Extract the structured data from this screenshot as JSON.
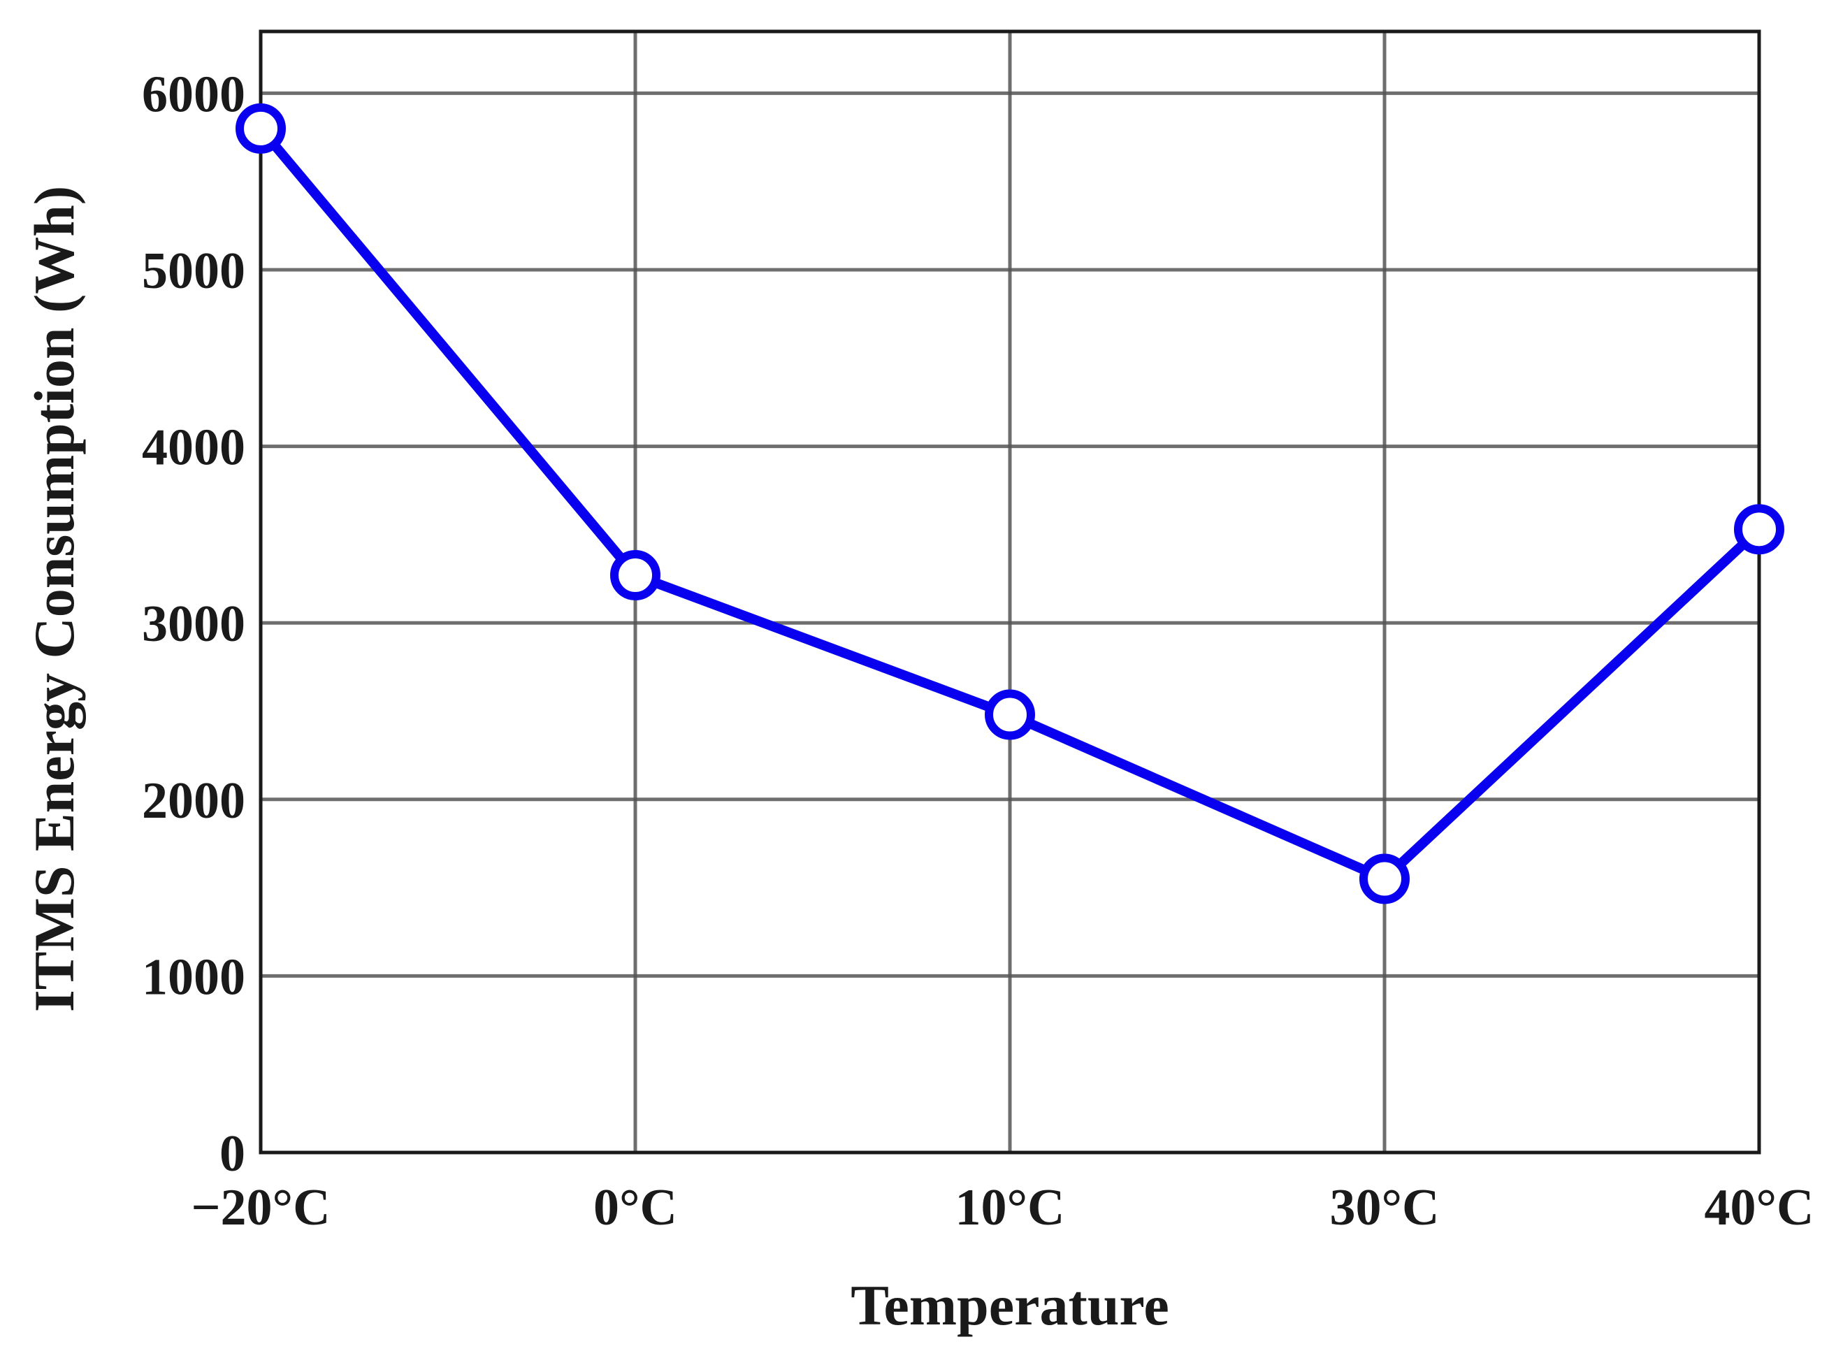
{
  "chart_data": {
    "type": "line",
    "title": "",
    "xlabel": "Temperature",
    "ylabel": "ITMS Energy Consumption (Wh)",
    "categories": [
      "−20°C",
      "0°C",
      "10°C",
      "30°C",
      "40°C"
    ],
    "series": [
      {
        "values": [
          5800,
          3270,
          2480,
          1550,
          3530
        ]
      }
    ],
    "ylim": [
      0,
      6350
    ],
    "yticks": [
      0,
      1000,
      2000,
      3000,
      4000,
      5000,
      6000
    ],
    "ytick_labels": [
      "0",
      "1000",
      "2000",
      "3000",
      "4000",
      "5000",
      "6000"
    ],
    "grid": true,
    "legend": "none",
    "marker": "open-circle",
    "colors": {
      "series": "#0a00f0",
      "grid": "#555555",
      "frame": "#1a1a1a",
      "text": "#1a1a1a"
    }
  }
}
